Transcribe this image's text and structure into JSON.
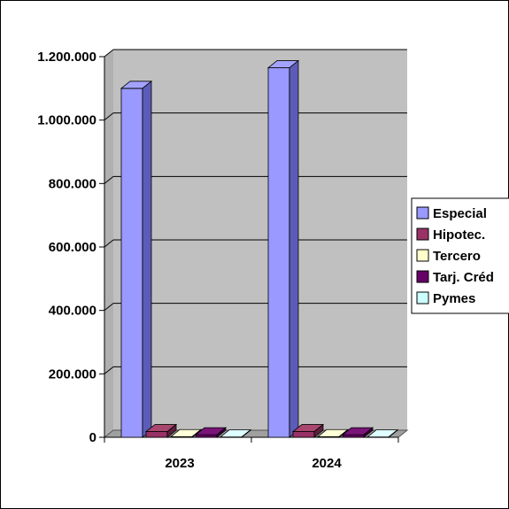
{
  "chart_data": {
    "type": "bar",
    "title": "",
    "xlabel": "",
    "ylabel": "",
    "categories": [
      "2023",
      "2024"
    ],
    "y_ticks": [
      "0",
      "200.000",
      "400.000",
      "600.000",
      "800.000",
      "1.000.000",
      "1.200.000"
    ],
    "ylim": [
      0,
      1200000
    ],
    "grid": true,
    "legend_position": "right",
    "series": [
      {
        "name": "Especial",
        "values": [
          1100000,
          1165000
        ],
        "color": "#9999ff",
        "top_color": "#a3a3ff",
        "side_color": "#5c5cb8"
      },
      {
        "name": "Hipotec.",
        "values": [
          18000,
          18000
        ],
        "color": "#993366",
        "top_color": "#a8466f",
        "side_color": "#5e1f3e"
      },
      {
        "name": "Tercero",
        "values": [
          2000,
          2000
        ],
        "color": "#ffffcc",
        "top_color": "#ffffd9",
        "side_color": "#b3b38f"
      },
      {
        "name": "Tarj. Créd",
        "values": [
          8000,
          8000
        ],
        "color": "#660066",
        "top_color": "#7a147a",
        "side_color": "#3d003d"
      },
      {
        "name": "Pymes",
        "values": [
          1000,
          1000
        ],
        "color": "#ccffff",
        "top_color": "#ddffff",
        "side_color": "#8fb3b3"
      }
    ],
    "colors": {
      "plot_wall": "#c0c0c0",
      "grid": "#000000",
      "floor": "#a0a0a0"
    }
  }
}
